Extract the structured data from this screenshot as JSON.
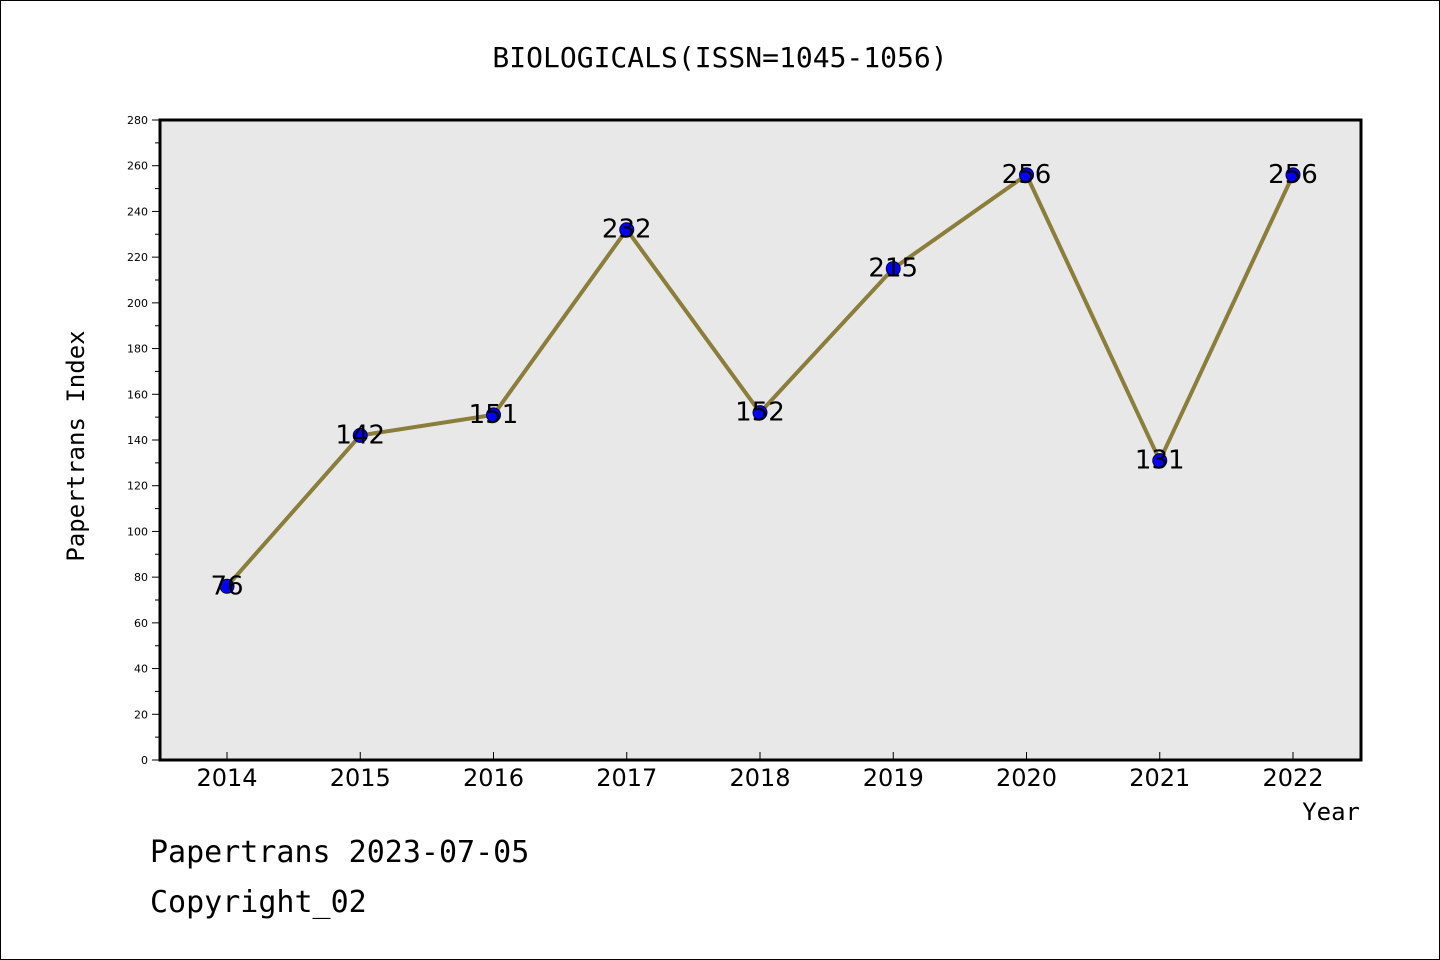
{
  "chart_data": {
    "type": "line",
    "title": "BIOLOGICALS(ISSN=1045-1056)",
    "xlabel": "Year",
    "ylabel": "Papertrans Index",
    "categories": [
      "2014",
      "2015",
      "2016",
      "2017",
      "2018",
      "2019",
      "2020",
      "2021",
      "2022"
    ],
    "series": [
      {
        "values": [
          76,
          142,
          151,
          232,
          152,
          215,
          256,
          131,
          256
        ]
      }
    ],
    "data_labels": [
      "76",
      "142",
      "151",
      "232",
      "152",
      "215",
      "256",
      "131",
      "256"
    ],
    "ylim": [
      0,
      280
    ],
    "yticks": [
      "0",
      "20",
      "40",
      "60",
      "80",
      "100",
      "120",
      "140",
      "160",
      "180",
      "200",
      "220",
      "240",
      "260",
      "280"
    ],
    "grid": false,
    "legend": "none",
    "colors": {
      "line": "#8b7d3a",
      "marker": "#0000ff",
      "plot_background": "#e8e8e8"
    }
  },
  "footer": {
    "line1": "Papertrans 2023-07-05",
    "line2": "Copyright_02"
  }
}
